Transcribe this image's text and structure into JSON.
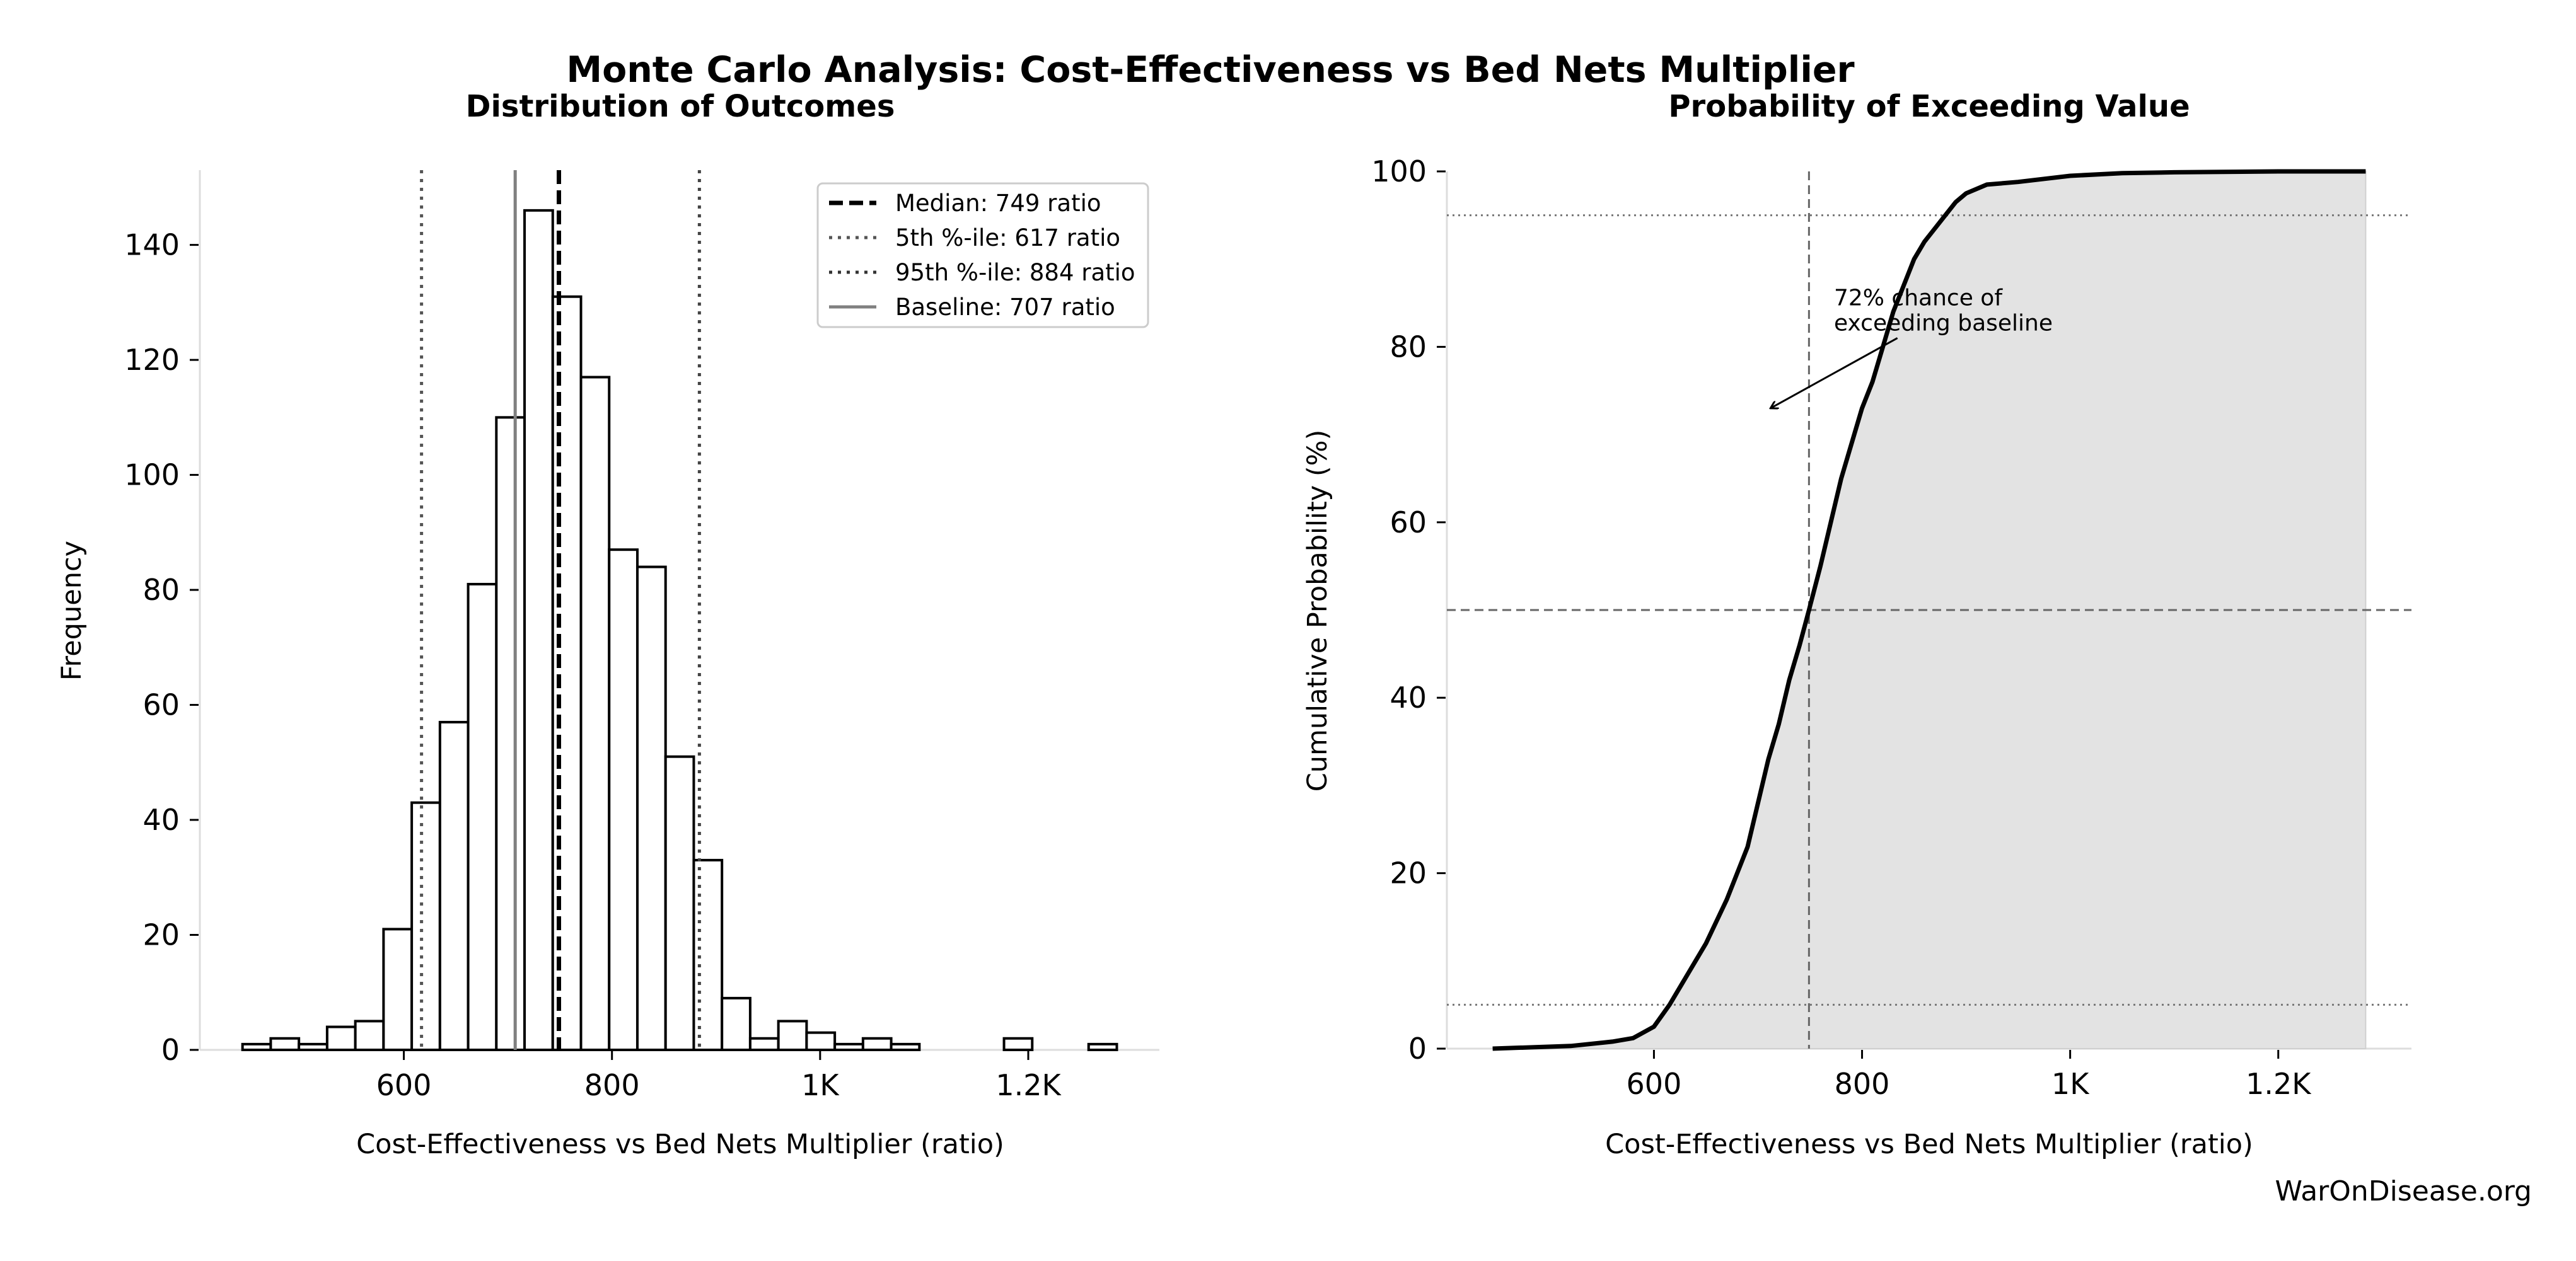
{
  "title": "Monte Carlo Analysis: Cost-Effectiveness vs Bed Nets Multiplier",
  "watermark": "WarOnDisease.org",
  "colors": {
    "bar_edge": "#000000",
    "bar_fill": "#ffffff",
    "fill_area": "#e3e3e3",
    "ref_line": "#555555",
    "baseline": "#808080",
    "spine": "#dddddd"
  },
  "chart_data": [
    {
      "type": "bar",
      "title": "Distribution of Outcomes",
      "xlabel": "Cost-Effectiveness vs Bed Nets Multiplier (ratio)",
      "ylabel": "Frequency",
      "xlim": [
        404,
        1326
      ],
      "ylim": [
        0,
        153
      ],
      "bin_start": 445,
      "bin_width": 27.1,
      "values": [
        1,
        2,
        1,
        4,
        5,
        21,
        43,
        57,
        81,
        110,
        146,
        131,
        117,
        87,
        84,
        51,
        33,
        9,
        2,
        5,
        3,
        1,
        2,
        1,
        0,
        0,
        0,
        2,
        0,
        0,
        1
      ],
      "xticks": [
        {
          "v": 600,
          "label": "600"
        },
        {
          "v": 800,
          "label": "800"
        },
        {
          "v": 1000,
          "label": "1K"
        },
        {
          "v": 1200,
          "label": "1.2K"
        }
      ],
      "yticks": [
        {
          "v": 0,
          "label": "0"
        },
        {
          "v": 20,
          "label": "20"
        },
        {
          "v": 40,
          "label": "40"
        },
        {
          "v": 60,
          "label": "60"
        },
        {
          "v": 80,
          "label": "80"
        },
        {
          "v": 100,
          "label": "100"
        },
        {
          "v": 120,
          "label": "120"
        },
        {
          "v": 140,
          "label": "140"
        }
      ],
      "ref_lines": [
        {
          "name": "median",
          "value": 749,
          "label": "Median: 749 ratio",
          "style": "dashed"
        },
        {
          "name": "p5",
          "value": 617,
          "label": "5th %-ile: 617 ratio",
          "style": "dotted"
        },
        {
          "name": "p95",
          "value": 884,
          "label": "95th %-ile: 884 ratio",
          "style": "dotted"
        },
        {
          "name": "baseline",
          "value": 707,
          "label": "Baseline: 707 ratio",
          "style": "solid"
        }
      ],
      "legend_position": "top-right",
      "grid": false
    },
    {
      "type": "line",
      "title": "Probability of Exceeding Value",
      "xlabel": "Cost-Effectiveness vs Bed Nets Multiplier (ratio)",
      "ylabel": "Cumulative Probability (%)",
      "xlim": [
        401,
        1328
      ],
      "ylim": [
        0,
        100
      ],
      "x": [
        445,
        520,
        560,
        580,
        600,
        615,
        630,
        650,
        670,
        690,
        700,
        710,
        720,
        730,
        740,
        749,
        760,
        770,
        780,
        790,
        800,
        810,
        820,
        830,
        840,
        850,
        860,
        870,
        880,
        890,
        900,
        920,
        950,
        1000,
        1050,
        1100,
        1200,
        1284
      ],
      "y": [
        0,
        0.3,
        0.8,
        1.2,
        2.5,
        5,
        8,
        12,
        17,
        23,
        28,
        33,
        37,
        42,
        46,
        50,
        55,
        60,
        65,
        69,
        73,
        76,
        80,
        84,
        87,
        90,
        92,
        93.5,
        95,
        96.5,
        97.5,
        98.5,
        98.8,
        99.5,
        99.8,
        99.9,
        100,
        100
      ],
      "xticks": [
        {
          "v": 600,
          "label": "600"
        },
        {
          "v": 800,
          "label": "800"
        },
        {
          "v": 1000,
          "label": "1K"
        },
        {
          "v": 1200,
          "label": "1.2K"
        }
      ],
      "yticks": [
        {
          "v": 0,
          "label": "0"
        },
        {
          "v": 20,
          "label": "20"
        },
        {
          "v": 40,
          "label": "40"
        },
        {
          "v": 60,
          "label": "60"
        },
        {
          "v": 80,
          "label": "80"
        },
        {
          "v": 100,
          "label": "100"
        }
      ],
      "ref_lines": [
        {
          "name": "median-vertical",
          "axis": "x",
          "value": 749,
          "style": "dashed"
        },
        {
          "name": "p50-horizontal",
          "axis": "y",
          "value": 50,
          "style": "dashed"
        },
        {
          "name": "p5-horizontal",
          "axis": "y",
          "value": 5,
          "style": "dotted"
        },
        {
          "name": "p95-horizontal",
          "axis": "y",
          "value": 95,
          "style": "dotted"
        }
      ],
      "annotation": {
        "lines": [
          "72% chance of",
          "exceeding baseline"
        ],
        "text_at": [
          773,
          84
        ],
        "arrow_from": [
          834,
          81
        ],
        "arrow_to": [
          712,
          73
        ]
      },
      "grid": false
    }
  ]
}
